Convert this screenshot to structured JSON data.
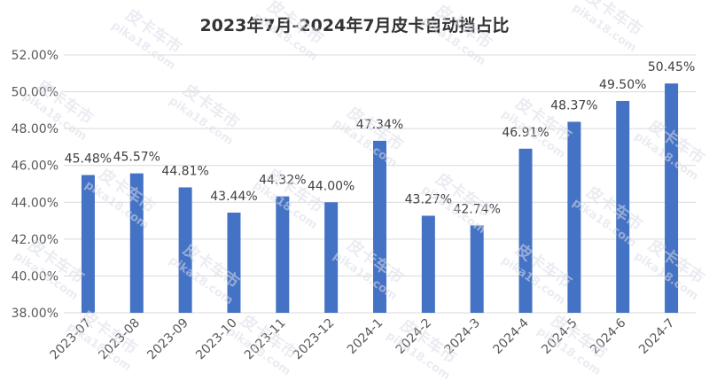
{
  "chart_data": {
    "type": "bar",
    "title": "2023年7月-2024年7月皮卡自动挡占比",
    "categories": [
      "2023-07",
      "2023-08",
      "2023-09",
      "2023-10",
      "2023-11",
      "2023-12",
      "2024-1",
      "2024-2",
      "2024-3",
      "2024-4",
      "2024-5",
      "2024-6",
      "2024-7"
    ],
    "values": [
      45.48,
      45.57,
      44.81,
      43.44,
      44.32,
      44.0,
      47.34,
      43.27,
      42.74,
      46.91,
      48.37,
      49.5,
      50.45
    ],
    "value_labels": [
      "45.48%",
      "45.57%",
      "44.81%",
      "43.44%",
      "44.32%",
      "44.00%",
      "47.34%",
      "43.27%",
      "42.74%",
      "46.91%",
      "48.37%",
      "49.50%",
      "50.45%"
    ],
    "ylim": [
      38,
      52
    ],
    "yticks": [
      38,
      40,
      42,
      44,
      46,
      48,
      50,
      52
    ],
    "ytick_labels": [
      "38.00%",
      "40.00%",
      "42.00%",
      "44.00%",
      "46.00%",
      "48.00%",
      "50.00%",
      "52.00%"
    ],
    "xlabel": "",
    "ylabel": "",
    "grid": true,
    "legend": "none",
    "bar_color": "#4472c4",
    "grid_color": "#d9d9d9"
  },
  "watermark": {
    "line1": "皮卡车市",
    "line2": "pika18.com",
    "color": "#d9dde8"
  }
}
